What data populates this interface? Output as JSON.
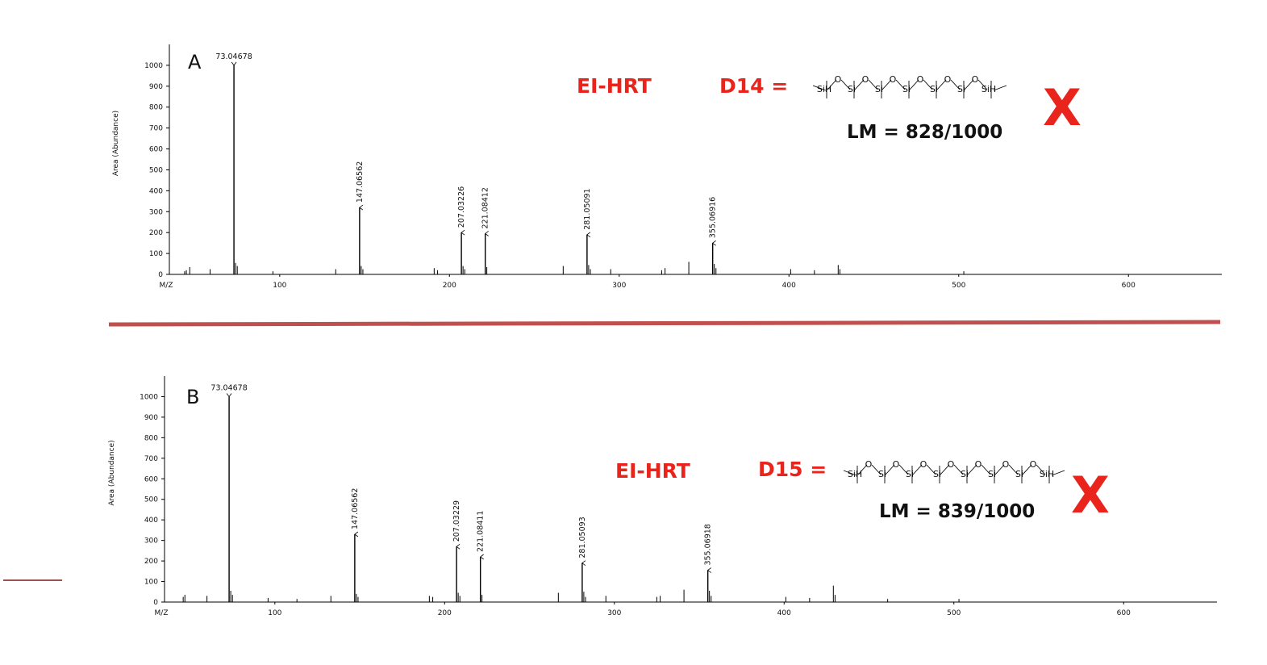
{
  "panels": [
    {
      "letter": "A",
      "method": "EI-HRT",
      "compound": "D14 =",
      "library_match": "LM = 828/1000",
      "verdict": "X",
      "structure": {
        "terminal_atom": "SiH",
        "chain_atom": "Si",
        "link_atom": "O",
        "chain_units": 5
      }
    },
    {
      "letter": "B",
      "method": "EI-HRT",
      "compound": "D15 =",
      "library_match": "LM = 839/1000",
      "verdict": "X",
      "structure": {
        "terminal_atom": "SiH",
        "chain_atom": "Si",
        "link_atom": "O",
        "chain_units": 6
      }
    }
  ],
  "colors": {
    "accent_red": "#e8241c",
    "separator": "#c0504d",
    "axis": "#000000"
  },
  "chart_data": [
    {
      "type": "bar",
      "title": "",
      "xlabel": "M/Z",
      "ylabel": "Area (Abundance)",
      "xlim": [
        35,
        655
      ],
      "ylim": [
        0,
        1100
      ],
      "xticks": [
        100,
        200,
        300,
        400,
        500,
        600
      ],
      "yticks": [
        0,
        100,
        200,
        300,
        400,
        500,
        600,
        700,
        800,
        900,
        1000
      ],
      "grid": false,
      "labeled_peaks": [
        {
          "mz": 73.04678,
          "value": 1000,
          "label": "73.04678"
        },
        {
          "mz": 147.06562,
          "value": 320,
          "label": "147.06562"
        },
        {
          "mz": 207.03226,
          "value": 200,
          "label": "207.03226"
        },
        {
          "mz": 221.08412,
          "value": 195,
          "label": "221.08412"
        },
        {
          "mz": 281.05091,
          "value": 190,
          "label": "281.05091"
        },
        {
          "mz": 355.06916,
          "value": 150,
          "label": "355.06916"
        }
      ],
      "minor_peaks": [
        {
          "mz": 44,
          "value": 15
        },
        {
          "mz": 45,
          "value": 20
        },
        {
          "mz": 47,
          "value": 35
        },
        {
          "mz": 59,
          "value": 25
        },
        {
          "mz": 74,
          "value": 55
        },
        {
          "mz": 75,
          "value": 40
        },
        {
          "mz": 96,
          "value": 15
        },
        {
          "mz": 133,
          "value": 25
        },
        {
          "mz": 148,
          "value": 40
        },
        {
          "mz": 149,
          "value": 25
        },
        {
          "mz": 191,
          "value": 30
        },
        {
          "mz": 193,
          "value": 20
        },
        {
          "mz": 208,
          "value": 40
        },
        {
          "mz": 209,
          "value": 25
        },
        {
          "mz": 222,
          "value": 35
        },
        {
          "mz": 267,
          "value": 40
        },
        {
          "mz": 282,
          "value": 45
        },
        {
          "mz": 283,
          "value": 25
        },
        {
          "mz": 295,
          "value": 25
        },
        {
          "mz": 325,
          "value": 20
        },
        {
          "mz": 327,
          "value": 30
        },
        {
          "mz": 341,
          "value": 60
        },
        {
          "mz": 356,
          "value": 50
        },
        {
          "mz": 357,
          "value": 30
        },
        {
          "mz": 401,
          "value": 25
        },
        {
          "mz": 415,
          "value": 20
        },
        {
          "mz": 429,
          "value": 45
        },
        {
          "mz": 430,
          "value": 25
        },
        {
          "mz": 503,
          "value": 15
        }
      ]
    },
    {
      "type": "bar",
      "title": "",
      "xlabel": "M/Z",
      "ylabel": "Area (Abundance)",
      "xlim": [
        35,
        655
      ],
      "ylim": [
        0,
        1100
      ],
      "xticks": [
        100,
        200,
        300,
        400,
        500,
        600
      ],
      "yticks": [
        0,
        100,
        200,
        300,
        400,
        500,
        600,
        700,
        800,
        900,
        1000
      ],
      "grid": false,
      "labeled_peaks": [
        {
          "mz": 73.04678,
          "value": 1000,
          "label": "73.04678"
        },
        {
          "mz": 147.06562,
          "value": 330,
          "label": "147.06562"
        },
        {
          "mz": 207.03229,
          "value": 270,
          "label": "207.03229"
        },
        {
          "mz": 221.08411,
          "value": 220,
          "label": "221.08411"
        },
        {
          "mz": 281.05093,
          "value": 190,
          "label": "281.05093"
        },
        {
          "mz": 355.06918,
          "value": 155,
          "label": "355.06918"
        }
      ],
      "minor_peaks": [
        {
          "mz": 46,
          "value": 25
        },
        {
          "mz": 47,
          "value": 35
        },
        {
          "mz": 60,
          "value": 30
        },
        {
          "mz": 74,
          "value": 55
        },
        {
          "mz": 75,
          "value": 35
        },
        {
          "mz": 96,
          "value": 20
        },
        {
          "mz": 113,
          "value": 15
        },
        {
          "mz": 133,
          "value": 30
        },
        {
          "mz": 148,
          "value": 40
        },
        {
          "mz": 149,
          "value": 25
        },
        {
          "mz": 191,
          "value": 30
        },
        {
          "mz": 193,
          "value": 25
        },
        {
          "mz": 208,
          "value": 45
        },
        {
          "mz": 209,
          "value": 30
        },
        {
          "mz": 222,
          "value": 35
        },
        {
          "mz": 267,
          "value": 45
        },
        {
          "mz": 282,
          "value": 50
        },
        {
          "mz": 283,
          "value": 25
        },
        {
          "mz": 295,
          "value": 30
        },
        {
          "mz": 325,
          "value": 25
        },
        {
          "mz": 327,
          "value": 30
        },
        {
          "mz": 341,
          "value": 60
        },
        {
          "mz": 356,
          "value": 55
        },
        {
          "mz": 357,
          "value": 30
        },
        {
          "mz": 401,
          "value": 25
        },
        {
          "mz": 415,
          "value": 20
        },
        {
          "mz": 429,
          "value": 80
        },
        {
          "mz": 430,
          "value": 35
        },
        {
          "mz": 461,
          "value": 15
        },
        {
          "mz": 503,
          "value": 15
        }
      ]
    }
  ]
}
